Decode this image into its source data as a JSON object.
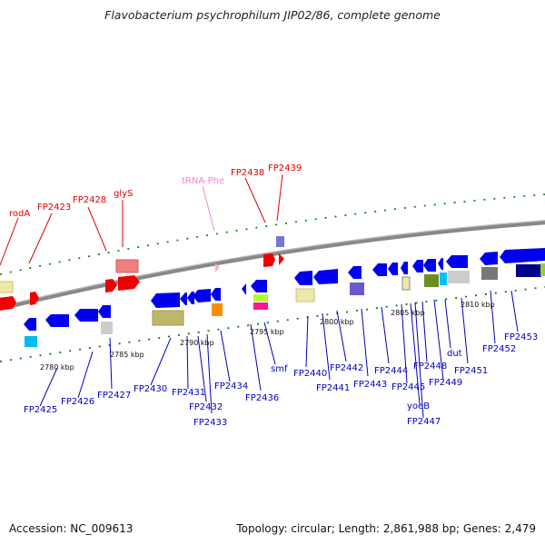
{
  "title": "Flavobacterium psychrophilum JIP02/86, complete genome",
  "footer": {
    "accession": "Accession: NC_009613",
    "summary": "Topology: circular; Length: 2,861,988 bp; Genes: 2,479"
  },
  "colors": {
    "forward_label": "#dd0000",
    "reverse_label": "#0000bb",
    "trna_label": "#ee88cc",
    "backbone": "#888888",
    "forward_tick": "#118811",
    "reverse_tick": "#117711"
  },
  "scale_labels": [
    "2780 kbp",
    "2785 kbp",
    "2790 kbp",
    "2795 kbp",
    "2800 kbp",
    "2805 kbp",
    "2810 kbp"
  ],
  "upper_labels": [
    "rodA",
    "FP2423",
    "FP2428",
    "glyS",
    "tRNA-Phe",
    "FP2438",
    "FP2439"
  ],
  "lower_labels": [
    "FP2425",
    "FP2426",
    "FP2427",
    "FP2430",
    "FP2431",
    "FP2432",
    "FP2433",
    "FP2434",
    "FP2436",
    "smf",
    "FP2440",
    "FP2441",
    "FP2442",
    "FP2443",
    "FP2444",
    "FP2445",
    "yoeB",
    "FP2447",
    "FP2448",
    "FP2449",
    "dut",
    "FP2451",
    "FP2452",
    "FP2453"
  ]
}
